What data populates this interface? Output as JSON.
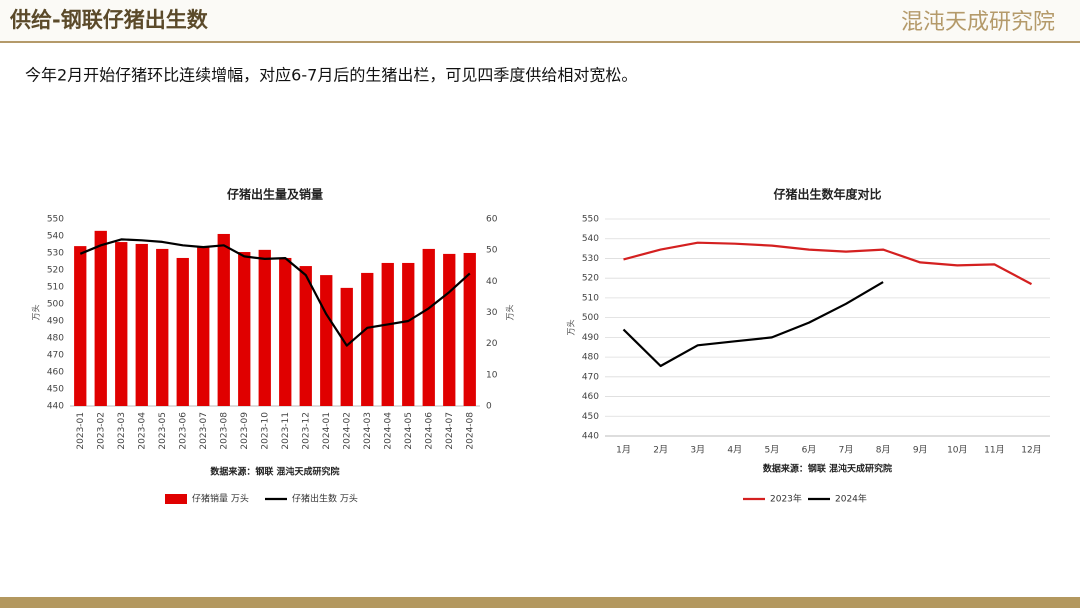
{
  "header": {
    "title": "供给-钢联仔猪出生数",
    "logo": "混沌天成研究院"
  },
  "subtitle": "今年2月开始仔猪环比连续增幅，对应6-7月后的生猪出栏，可见四季度供给相对宽松。",
  "chart_data": [
    {
      "type": "combo",
      "title": "仔猪出生量及销量",
      "source": "数据来源：钢联 混沌天成研究院",
      "categories": [
        "2023-01",
        "2023-02",
        "2023-03",
        "2023-04",
        "2023-05",
        "2023-06",
        "2023-07",
        "2023-08",
        "2023-09",
        "2023-10",
        "2023-11",
        "2023-12",
        "2024-01",
        "2024-02",
        "2024-03",
        "2024-04",
        "2024-05",
        "2024-06",
        "2024-07",
        "2024-08"
      ],
      "series": [
        {
          "name": "仔猪销量 万头",
          "type": "bar",
          "axis": "y2",
          "color": "#e00000",
          "values": [
            51.3,
            56.2,
            52.6,
            52.0,
            50.4,
            47.5,
            51.0,
            55.2,
            49.4,
            50.1,
            47.5,
            44.9,
            42.0,
            37.9,
            42.7,
            45.9,
            45.9,
            50.4,
            48.8,
            49.1
          ]
        },
        {
          "name": "仔猪出生数 万头",
          "type": "line",
          "color": "#000000",
          "values": [
            529.5,
            534.5,
            538,
            537.5,
            536.5,
            534.5,
            533.5,
            534.5,
            528,
            526.5,
            527,
            517,
            494,
            475.5,
            486,
            488,
            490,
            497.5,
            507,
            518
          ]
        }
      ],
      "ylabel": "万头",
      "y2label": "万头",
      "ylim": [
        440,
        550
      ],
      "yticks": [
        440,
        450,
        460,
        470,
        480,
        490,
        500,
        510,
        520,
        530,
        540,
        550
      ],
      "y2lim": [
        0,
        60
      ],
      "y2ticks": [
        0,
        10,
        20,
        30,
        40,
        50,
        60
      ],
      "grid": false
    },
    {
      "type": "line",
      "title": "仔猪出生数年度对比",
      "source": "数据来源：钢联 混沌天成研究院",
      "categories": [
        "1月",
        "2月",
        "3月",
        "4月",
        "5月",
        "6月",
        "7月",
        "8月",
        "9月",
        "10月",
        "11月",
        "12月"
      ],
      "series": [
        {
          "name": "2023年",
          "type": "line",
          "color": "#d42020",
          "values": [
            529.5,
            534.5,
            538,
            537.5,
            536.5,
            534.5,
            533.5,
            534.5,
            528,
            526.5,
            527,
            517
          ]
        },
        {
          "name": "2024年",
          "type": "line",
          "color": "#000000",
          "values": [
            494,
            475.5,
            486,
            488,
            490,
            497.5,
            507,
            518,
            null,
            null,
            null,
            null
          ]
        }
      ],
      "ylabel": "万头",
      "ylim": [
        440,
        550
      ],
      "yticks": [
        440,
        450,
        460,
        470,
        480,
        490,
        500,
        510,
        520,
        530,
        540,
        550
      ],
      "grid": true
    }
  ]
}
